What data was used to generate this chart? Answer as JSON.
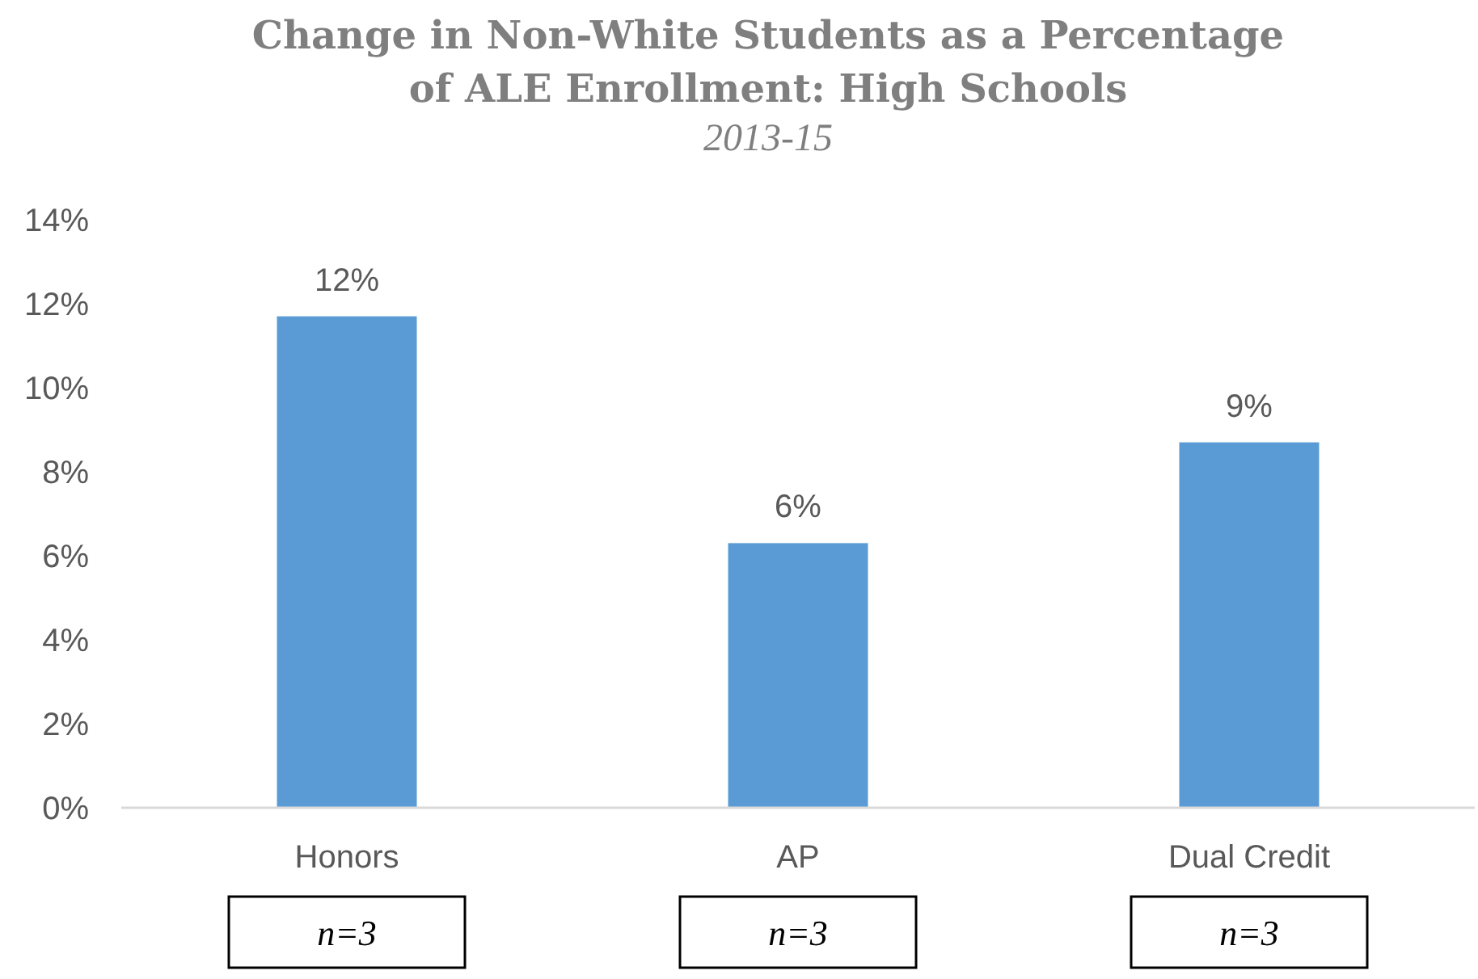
{
  "chart_data": {
    "type": "bar",
    "title": "Change in Non-White Students as a Percentage of ALE Enrollment: High Schools",
    "subtitle": "2013-15",
    "categories": [
      "Honors",
      "AP",
      "Dual Credit"
    ],
    "values": [
      11.7,
      6.3,
      8.7
    ],
    "color": "#5b9bd5",
    "value_labels": [
      "12%",
      "6%",
      "9%"
    ],
    "ylim": [
      0,
      14
    ],
    "yticks": [
      {
        "value": 0,
        "label": "0%"
      },
      {
        "value": 2,
        "label": "2%"
      },
      {
        "value": 4,
        "label": "4%"
      },
      {
        "value": 6,
        "label": "6%"
      },
      {
        "value": 8,
        "label": "8%"
      },
      {
        "value": 10,
        "label": "10%"
      },
      {
        "value": 12,
        "label": "12%"
      },
      {
        "value": 14,
        "label": "14%"
      }
    ],
    "grid": false,
    "annotations": [
      "n=3",
      "n=3",
      "n=3"
    ]
  }
}
